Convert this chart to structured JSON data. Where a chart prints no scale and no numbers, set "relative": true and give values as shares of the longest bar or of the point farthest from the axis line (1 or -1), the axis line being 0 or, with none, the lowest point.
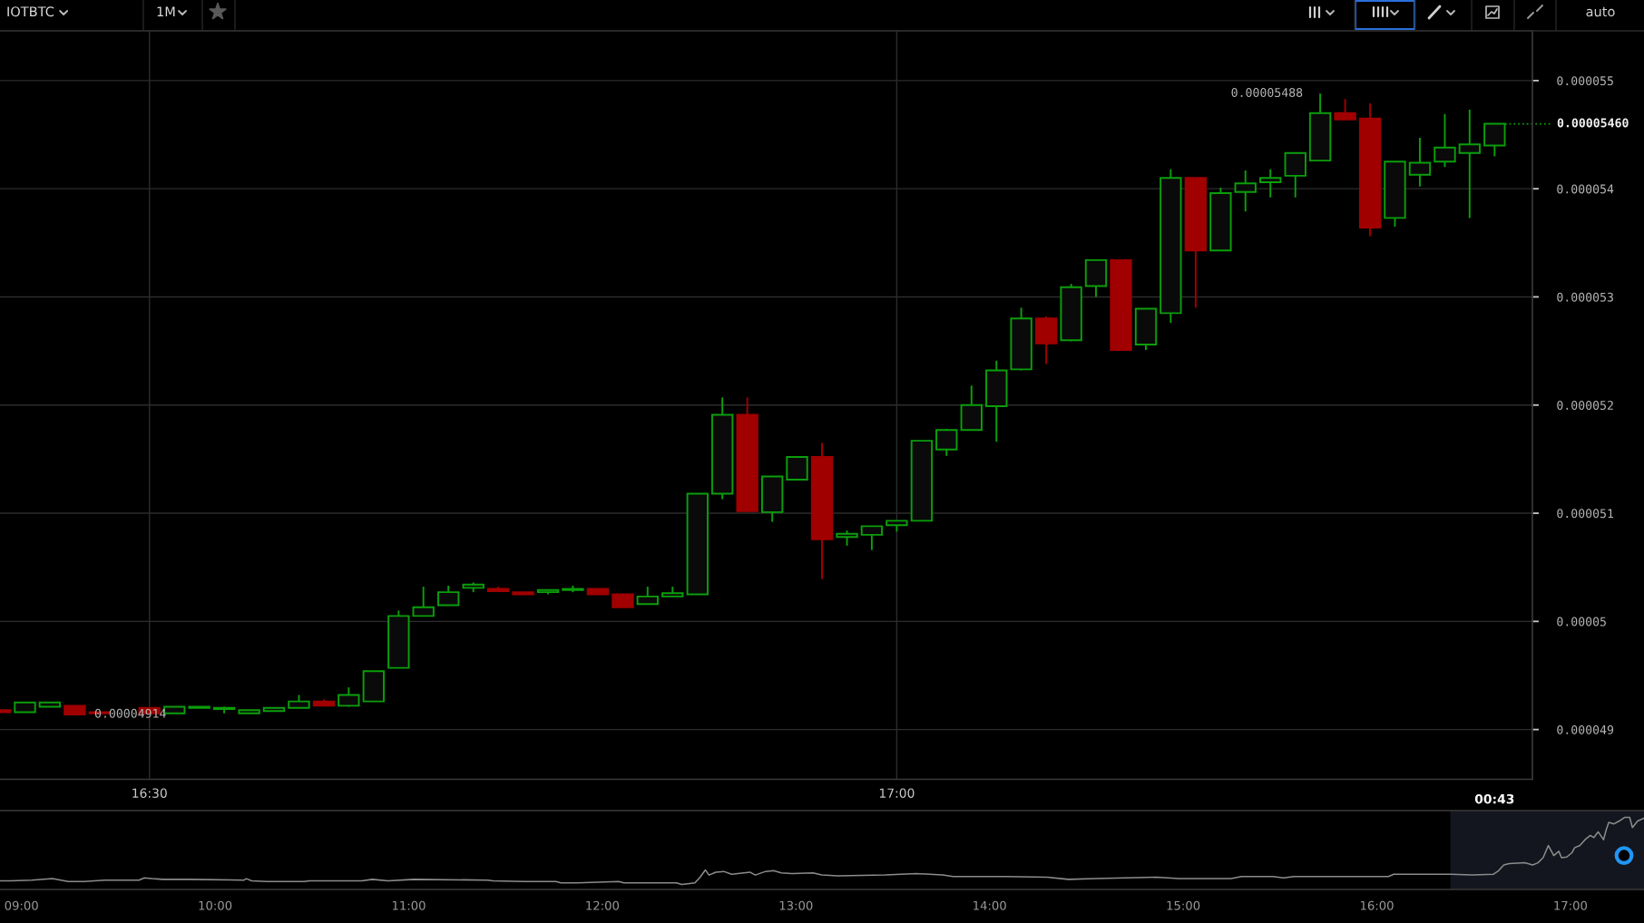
{
  "chart_data": [
    {
      "type": "candlestick",
      "title": "IOTBTC",
      "subtitle": "1M",
      "x": [
        16.4,
        16.4167,
        16.4333,
        16.45,
        16.4667,
        16.5,
        16.5167,
        16.5333,
        16.55,
        16.5667,
        16.5833,
        16.6,
        16.6167,
        16.6333,
        16.65,
        16.6667,
        16.6833,
        16.7,
        16.7167,
        16.7333,
        16.75,
        16.7667,
        16.7833,
        16.8,
        16.8167,
        16.8333,
        16.85,
        16.8667,
        16.8833,
        16.9,
        16.9167,
        16.9333,
        16.95,
        16.9667,
        16.9833,
        17.0,
        17.0167,
        17.0333,
        17.05,
        17.0667,
        17.0833,
        17.1,
        17.1167,
        17.1333,
        17.15,
        17.1667,
        17.1833,
        17.2,
        17.2167,
        17.2333,
        17.25,
        17.2667,
        17.2833,
        17.3,
        17.3167,
        17.3333,
        17.35,
        17.3667,
        17.3833,
        17.4
      ],
      "ohlc": [
        [
          4.918e-05,
          4.918e-05,
          4.916e-05,
          4.916e-05
        ],
        [
          4.916e-05,
          4.925e-05,
          4.916e-05,
          4.925e-05
        ],
        [
          4.921e-05,
          4.925e-05,
          4.921e-05,
          4.925e-05
        ],
        [
          4.922e-05,
          4.922e-05,
          4.914e-05,
          4.914e-05
        ],
        [
          4.916e-05,
          4.916e-05,
          4.915e-05,
          4.915e-05
        ],
        [
          4.92e-05,
          4.92e-05,
          4.915e-05,
          4.915e-05
        ],
        [
          4.915e-05,
          4.921e-05,
          4.915e-05,
          4.921e-05
        ],
        [
          4.92e-05,
          4.921e-05,
          4.92e-05,
          4.921e-05
        ],
        [
          4.919e-05,
          4.921e-05,
          4.915e-05,
          4.92e-05
        ],
        [
          4.915e-05,
          4.918e-05,
          4.915e-05,
          4.918e-05
        ],
        [
          4.917e-05,
          4.92e-05,
          4.917e-05,
          4.92e-05
        ],
        [
          4.92e-05,
          4.932e-05,
          4.92e-05,
          4.926e-05
        ],
        [
          4.926e-05,
          4.928e-05,
          4.922e-05,
          4.922e-05
        ],
        [
          4.922e-05,
          4.939e-05,
          4.921e-05,
          4.932e-05
        ],
        [
          4.926e-05,
          4.954e-05,
          4.926e-05,
          4.954e-05
        ],
        [
          4.957e-05,
          5.01e-05,
          4.957e-05,
          5.005e-05
        ],
        [
          5.005e-05,
          5.032e-05,
          5.005e-05,
          5.013e-05
        ],
        [
          5.015e-05,
          5.033e-05,
          5.015e-05,
          5.027e-05
        ],
        [
          5.031e-05,
          5.036e-05,
          5.027e-05,
          5.034e-05
        ],
        [
          5.03e-05,
          5.032e-05,
          5.028e-05,
          5.028e-05
        ],
        [
          5.027e-05,
          5.027e-05,
          5.025e-05,
          5.025e-05
        ],
        [
          5.027e-05,
          5.029e-05,
          5.025e-05,
          5.029e-05
        ],
        [
          5.029e-05,
          5.033e-05,
          5.027e-05,
          5.03e-05
        ],
        [
          5.03e-05,
          5.03e-05,
          5.025e-05,
          5.025e-05
        ],
        [
          5.025e-05,
          5.025e-05,
          5.013e-05,
          5.013e-05
        ],
        [
          5.016e-05,
          5.032e-05,
          5.016e-05,
          5.023e-05
        ],
        [
          5.023e-05,
          5.032e-05,
          5.023e-05,
          5.026e-05
        ],
        [
          5.025e-05,
          5.118e-05,
          5.025e-05,
          5.118e-05
        ],
        [
          5.118e-05,
          5.207e-05,
          5.113e-05,
          5.191e-05
        ],
        [
          5.191e-05,
          5.207e-05,
          5.101e-05,
          5.102e-05
        ],
        [
          5.101e-05,
          5.134e-05,
          5.092e-05,
          5.134e-05
        ],
        [
          5.131e-05,
          5.152e-05,
          5.131e-05,
          5.152e-05
        ],
        [
          5.152e-05,
          5.165e-05,
          5.039e-05,
          5.076e-05
        ],
        [
          5.078e-05,
          5.084e-05,
          5.07e-05,
          5.081e-05
        ],
        [
          5.08e-05,
          5.088e-05,
          5.066e-05,
          5.088e-05
        ],
        [
          5.089e-05,
          5.093e-05,
          5.083e-05,
          5.093e-05
        ],
        [
          5.093e-05,
          5.167e-05,
          5.093e-05,
          5.167e-05
        ],
        [
          5.159e-05,
          5.178e-05,
          5.153e-05,
          5.177e-05
        ],
        [
          5.177e-05,
          5.218e-05,
          5.177e-05,
          5.2e-05
        ],
        [
          5.199e-05,
          5.241e-05,
          5.166e-05,
          5.232e-05
        ],
        [
          5.233e-05,
          5.29e-05,
          5.232e-05,
          5.28e-05
        ],
        [
          5.28e-05,
          5.282e-05,
          5.238e-05,
          5.257e-05
        ],
        [
          5.26e-05,
          5.312e-05,
          5.259e-05,
          5.309e-05
        ],
        [
          5.31e-05,
          5.334e-05,
          5.3e-05,
          5.334e-05
        ],
        [
          5.334e-05,
          5.334e-05,
          5.251e-05,
          5.251e-05
        ],
        [
          5.256e-05,
          5.289e-05,
          5.251e-05,
          5.289e-05
        ],
        [
          5.285e-05,
          5.418e-05,
          5.276e-05,
          5.41e-05
        ],
        [
          5.41e-05,
          5.41e-05,
          5.29e-05,
          5.343e-05
        ],
        [
          5.343e-05,
          5.401e-05,
          5.343e-05,
          5.396e-05
        ],
        [
          5.397e-05,
          5.417e-05,
          5.379e-05,
          5.405e-05
        ],
        [
          5.406e-05,
          5.418e-05,
          5.392e-05,
          5.41e-05
        ],
        [
          5.412e-05,
          5.433e-05,
          5.392e-05,
          5.433e-05
        ],
        [
          5.426e-05,
          5.488e-05,
          5.426e-05,
          5.47e-05
        ],
        [
          5.47e-05,
          5.483e-05,
          5.464e-05,
          5.464e-05
        ],
        [
          5.465e-05,
          5.479e-05,
          5.356e-05,
          5.364e-05
        ],
        [
          5.373e-05,
          5.425e-05,
          5.365e-05,
          5.425e-05
        ],
        [
          5.413e-05,
          5.447e-05,
          5.402e-05,
          5.424e-05
        ],
        [
          5.425e-05,
          5.469e-05,
          5.42e-05,
          5.438e-05
        ],
        [
          5.433e-05,
          5.473e-05,
          5.373e-05,
          5.441e-05
        ],
        [
          5.44e-05,
          5.46e-05,
          5.43e-05,
          5.46e-05
        ]
      ],
      "colors": [
        "#a00000",
        "#0b9e0b",
        "#0b9e0b",
        "#a00000",
        "#a00000",
        "#a00000",
        "#0b9e0b",
        "#0b9e0b",
        "#0b9e0b",
        "#0b9e0b",
        "#0b9e0b",
        "#0b9e0b",
        "#a00000",
        "#0b9e0b",
        "#0b9e0b",
        "#0b9e0b",
        "#0b9e0b",
        "#0b9e0b",
        "#0b9e0b",
        "#a00000",
        "#a00000",
        "#0b9e0b",
        "#0b9e0b",
        "#a00000",
        "#a00000",
        "#0b9e0b",
        "#0b9e0b",
        "#0b9e0b",
        "#0b9e0b",
        "#a00000",
        "#0b9e0b",
        "#0b9e0b",
        "#a00000",
        "#0b9e0b",
        "#0b9e0b",
        "#0b9e0b",
        "#0b9e0b",
        "#0b9e0b",
        "#0b9e0b",
        "#0b9e0b",
        "#0b9e0b",
        "#a00000",
        "#0b9e0b",
        "#0b9e0b",
        "#a00000",
        "#0b9e0b",
        "#0b9e0b",
        "#a00000",
        "#0b9e0b",
        "#0b9e0b",
        "#0b9e0b",
        "#0b9e0b",
        "#0b9e0b",
        "#a00000",
        "#a00000",
        "#0b9e0b",
        "#0b9e0b",
        "#0b9e0b",
        "#0b9e0b",
        "#0b9e0b"
      ],
      "xlim": [
        16.4,
        17.4253
      ],
      "xticks": [
        {
          "value": 16.5,
          "label": "16:30"
        },
        {
          "value": 17.0,
          "label": "17:00"
        }
      ],
      "ylim": [
        4.854e-05,
        5.546e-05
      ],
      "yticks": [
        {
          "value": 4.9e-05,
          "label": "0.000049"
        },
        {
          "value": 5e-05,
          "label": "0.00005"
        },
        {
          "value": 5.1e-05,
          "label": "0.000051"
        },
        {
          "value": 5.2e-05,
          "label": "0.000052"
        },
        {
          "value": 5.3e-05,
          "label": "0.000053"
        },
        {
          "value": 5.4e-05,
          "label": "0.000054"
        },
        {
          "value": 5.5e-05,
          "label": "0.000055"
        }
      ],
      "grid": true,
      "annotations": [
        {
          "text": "0.00005488",
          "x": 17.2833,
          "y": 5.488e-05
        },
        {
          "text": "0.00004914",
          "x": 16.45,
          "y": 4.914e-05
        },
        "0.00005460",
        "00:43",
        "auto"
      ]
    },
    {
      "type": "line",
      "relative": true,
      "color": "#8c8c8c",
      "x": [
        8.889,
        8.943,
        9.052,
        9.16,
        9.241,
        9.322,
        9.431,
        9.607,
        9.634,
        9.674,
        9.729,
        9.864,
        10.149,
        10.162,
        10.189,
        10.27,
        10.46,
        10.487,
        10.541,
        10.758,
        10.812,
        10.893,
        11.029,
        11.408,
        11.435,
        11.597,
        11.76,
        11.787,
        11.868,
        12.085,
        12.112,
        12.302,
        12.383,
        12.41,
        12.478,
        12.505,
        12.532,
        12.551,
        12.586,
        12.627,
        12.668,
        12.762,
        12.79,
        12.843,
        12.884,
        12.925,
        12.979,
        13.088,
        13.134,
        13.216,
        13.46,
        13.622,
        13.758,
        13.812,
        13.947,
        14.083,
        14.299,
        14.408,
        14.543,
        14.868,
        14.977,
        15.247,
        15.301,
        15.464,
        15.518,
        15.572,
        16.06,
        16.087,
        16.385,
        16.493,
        16.601,
        16.629,
        16.656,
        16.683,
        16.764,
        16.805,
        16.832,
        16.859,
        16.886,
        16.914,
        16.94,
        16.954,
        16.981,
        17.008,
        17.022,
        17.049,
        17.075,
        17.103,
        17.121,
        17.143,
        17.171,
        17.184,
        17.198,
        17.225,
        17.252,
        17.279,
        17.306,
        17.32,
        17.347,
        17.38
      ],
      "values": [
        0.12,
        0.12,
        0.13,
        0.15,
        0.11,
        0.11,
        0.13,
        0.13,
        0.16,
        0.15,
        0.14,
        0.14,
        0.13,
        0.15,
        0.12,
        0.11,
        0.11,
        0.12,
        0.12,
        0.12,
        0.14,
        0.12,
        0.14,
        0.13,
        0.12,
        0.11,
        0.11,
        0.09,
        0.09,
        0.11,
        0.09,
        0.09,
        0.09,
        0.07,
        0.09,
        0.17,
        0.27,
        0.2,
        0.24,
        0.25,
        0.21,
        0.24,
        0.2,
        0.25,
        0.26,
        0.23,
        0.22,
        0.23,
        0.2,
        0.19,
        0.2,
        0.22,
        0.2,
        0.18,
        0.18,
        0.18,
        0.17,
        0.14,
        0.15,
        0.17,
        0.15,
        0.15,
        0.18,
        0.18,
        0.16,
        0.18,
        0.18,
        0.21,
        0.21,
        0.2,
        0.21,
        0.26,
        0.34,
        0.36,
        0.37,
        0.34,
        0.37,
        0.44,
        0.61,
        0.47,
        0.53,
        0.44,
        0.45,
        0.51,
        0.58,
        0.61,
        0.69,
        0.75,
        0.72,
        0.8,
        0.69,
        0.82,
        0.93,
        0.91,
        0.95,
        1,
        1,
        0.86,
        0.95,
        0.99
      ],
      "xlim": [
        8.889,
        17.38
      ],
      "xticks": [
        {
          "value": 9,
          "label": "09:00"
        },
        {
          "value": 10,
          "label": "10:00"
        },
        {
          "value": 11,
          "label": "11:00"
        },
        {
          "value": 12,
          "label": "12:00"
        },
        {
          "value": 13,
          "label": "13:00"
        },
        {
          "value": 14,
          "label": "14:00"
        },
        {
          "value": 15,
          "label": "15:00"
        },
        {
          "value": 16,
          "label": "16:00"
        },
        {
          "value": 17,
          "label": "17:00"
        }
      ],
      "bands": [
        {
          "axis": "x",
          "from": 16.38,
          "to": 17.38,
          "color": "#13161f"
        }
      ]
    }
  ]
}
